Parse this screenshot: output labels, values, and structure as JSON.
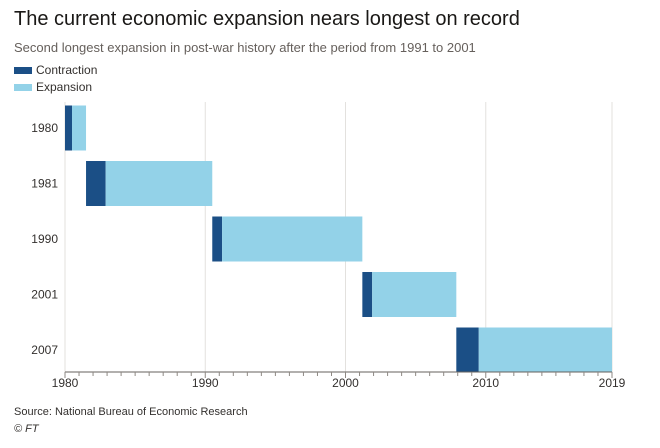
{
  "chart_data": {
    "type": "bar",
    "orientation": "horizontal-range",
    "title": "The current economic expansion nears longest on record",
    "subtitle": "Second longest expansion in post-war history after the period from 1991 to 2001",
    "legend": [
      {
        "name": "Contraction",
        "color": "#1b4f86"
      },
      {
        "name": "Expansion",
        "color": "#93d2e8"
      }
    ],
    "legend_placement": "top-left",
    "categories": [
      "1980",
      "1981",
      "1990",
      "2001",
      "2007"
    ],
    "series": [
      {
        "name": "Contraction",
        "ranges": [
          [
            1980.0,
            1980.5
          ],
          [
            1981.5,
            1982.9
          ],
          [
            1990.5,
            1991.2
          ],
          [
            2001.2,
            2001.9
          ],
          [
            2007.9,
            2009.5
          ]
        ]
      },
      {
        "name": "Expansion",
        "ranges": [
          [
            1980.5,
            1981.5
          ],
          [
            1982.9,
            1990.5
          ],
          [
            1991.2,
            2001.2
          ],
          [
            2001.9,
            2007.9
          ],
          [
            2009.5,
            2019.0
          ]
        ]
      }
    ],
    "xlim": [
      1980,
      2019
    ],
    "x_ticks": [
      "1980",
      "1990",
      "2000",
      "2010",
      "2019"
    ],
    "grid": true,
    "source": "Source: National Bureau of Economic Research",
    "credit": "© FT"
  }
}
